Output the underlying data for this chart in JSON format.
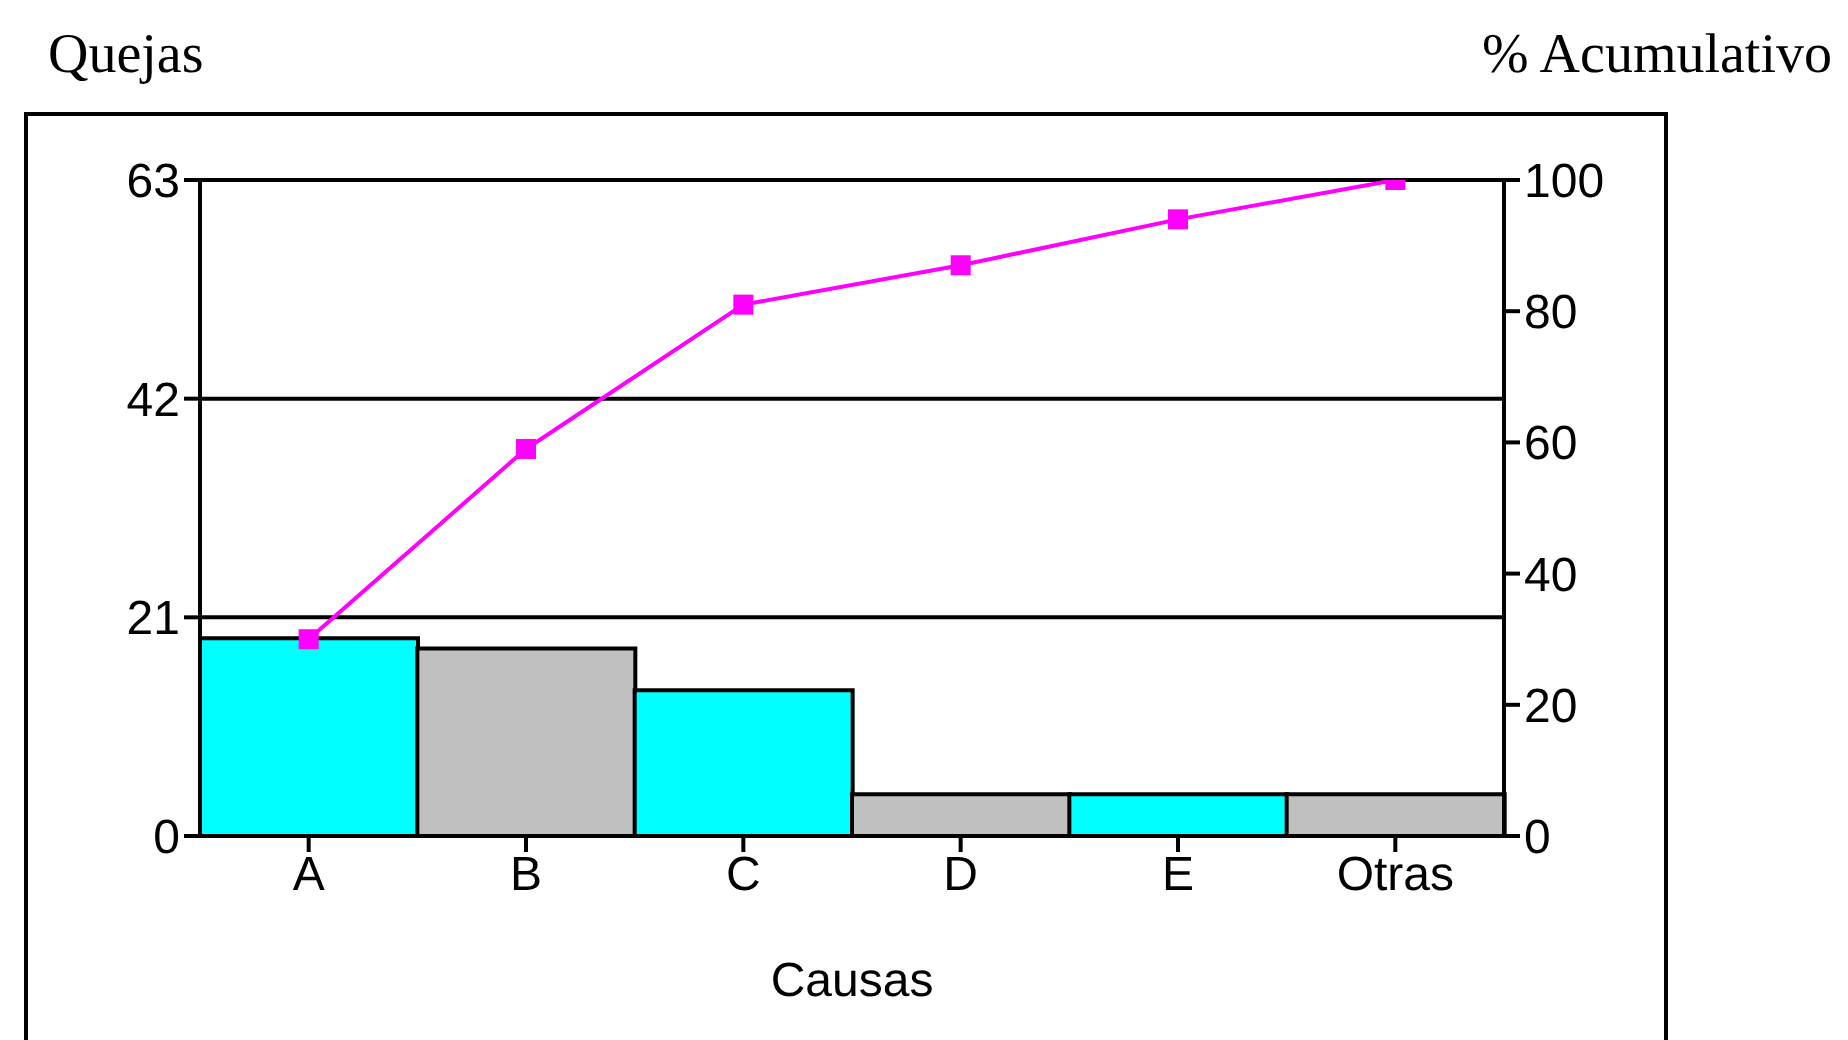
{
  "chart_data": {
    "type": "bar",
    "ylabel": "Quejas",
    "y2label": "% Acumulativo",
    "xlabel": "Causas",
    "categories": [
      "A",
      "B",
      "C",
      "D",
      "E",
      "Otras"
    ],
    "series": [
      {
        "colors": [
          "#00ffff",
          "#c0c0c0",
          "#00ffff",
          "#c0c0c0",
          "#00ffff",
          "#c0c0c0"
        ],
        "values": [
          19,
          18,
          14,
          4,
          4,
          4
        ]
      },
      {
        "type": "line",
        "axis": "y2",
        "color": "#ff00ff",
        "marker": "square",
        "values": [
          30,
          59,
          81,
          87,
          94,
          100
        ]
      }
    ],
    "ylim": [
      0,
      63
    ],
    "yticks": [
      0,
      21,
      42,
      63
    ],
    "y2lim": [
      0,
      100
    ],
    "y2ticks": [
      0,
      20,
      40,
      60,
      80,
      100
    ],
    "grid": "y"
  }
}
